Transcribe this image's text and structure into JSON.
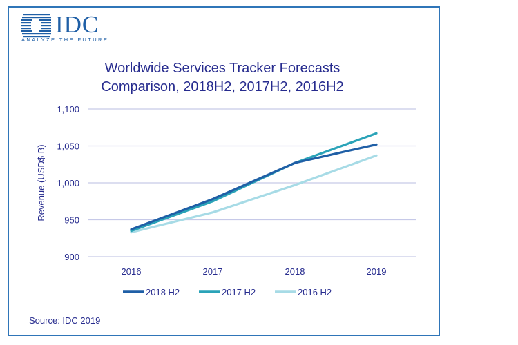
{
  "logo": {
    "name": "IDC",
    "tagline": "ANALYZE THE FUTURE"
  },
  "title_line1": "Worldwide Services Tracker Forecasts",
  "title_line2": "Comparison, 2018H2, 2017H2, 2016H2",
  "source": "Source: IDC 2019",
  "colors": {
    "frame": "#2f75b8",
    "text": "#262b8e",
    "grid": "#c6c9e8"
  },
  "chart_data": {
    "type": "line",
    "title": "Worldwide Services Tracker Forecasts Comparison, 2018H2, 2017H2, 2016H2",
    "xlabel": "",
    "ylabel": "Revenue (USD$ B)",
    "categories": [
      "2016",
      "2017",
      "2018",
      "2019"
    ],
    "ylim": [
      900,
      1100
    ],
    "yticks": [
      900,
      950,
      1000,
      1050,
      1100
    ],
    "ytick_labels": [
      "900",
      "950",
      "1,000",
      "1,050",
      "1,100"
    ],
    "grid": true,
    "legend_position": "bottom",
    "series": [
      {
        "name": "2018 H2",
        "color": "#1f5fa6",
        "values": [
          937,
          978,
          1027,
          1052
        ]
      },
      {
        "name": "2017 H2",
        "color": "#2aa3b8",
        "values": [
          935,
          975,
          1027,
          1067
        ]
      },
      {
        "name": "2016 H2",
        "color": "#a7dbe6",
        "values": [
          933,
          960,
          997,
          1037
        ]
      }
    ]
  }
}
